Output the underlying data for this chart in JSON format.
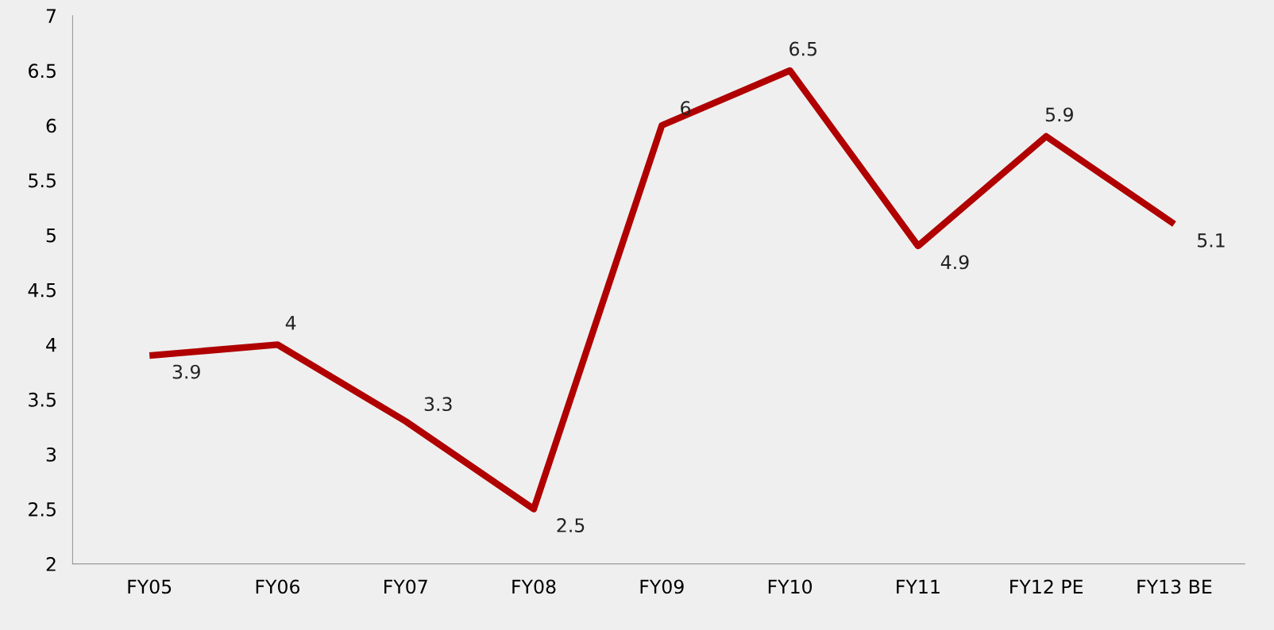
{
  "chart_data": {
    "type": "line",
    "categories": [
      "FY05",
      "FY06",
      "FY07",
      "FY08",
      "FY09",
      "FY10",
      "FY11",
      "FY12 PE",
      "FY13 BE"
    ],
    "series": [
      {
        "color": "#b00000",
        "values": [
          3.9,
          4,
          3.3,
          2.5,
          6,
          6.5,
          4.9,
          5.9,
          5.1
        ]
      }
    ],
    "ylim": [
      2,
      7
    ],
    "yticks": [
      2,
      2.5,
      3,
      3.5,
      4,
      4.5,
      5,
      5.5,
      6,
      6.5,
      7
    ],
    "data_labels": true,
    "grid": false,
    "legend": false,
    "marker": "none",
    "line_style": "solid"
  }
}
